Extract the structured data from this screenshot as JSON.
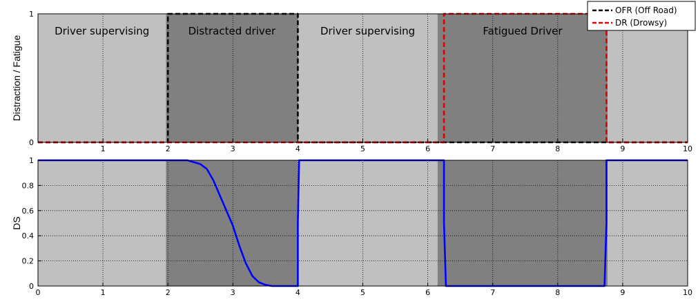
{
  "chart_data": [
    {
      "type": "line",
      "title": "",
      "xlabel": "",
      "ylabel": "Distraction / Fatigue",
      "xlim": [
        0,
        10
      ],
      "ylim": [
        0,
        1
      ],
      "x_ticks": [
        1,
        2,
        3,
        4,
        5,
        6,
        7,
        8,
        9,
        10
      ],
      "y_ticks": [
        0,
        1
      ],
      "grid": true,
      "background_regions": [
        {
          "label": "Driver supervising",
          "x_start": 0,
          "x_end": 1.97,
          "color": "#c0c0c0"
        },
        {
          "label": "Distracted driver",
          "x_start": 1.97,
          "x_end": 4.0,
          "color": "#808080"
        },
        {
          "label": "Driver supervising",
          "x_start": 4.0,
          "x_end": 6.15,
          "color": "#c0c0c0"
        },
        {
          "label": "Fatigued Driver",
          "x_start": 6.15,
          "x_end": 8.77,
          "color": "#808080"
        },
        {
          "label": "",
          "x_start": 8.77,
          "x_end": 10,
          "color": "#c0c0c0"
        }
      ],
      "legend": {
        "placement": "top-right",
        "entries": [
          "OFR (Off Road)",
          "DR (Drowsy)"
        ]
      },
      "series": [
        {
          "name": "OFR (Off Road)",
          "color": "#000000",
          "style": "dashed",
          "x": [
            0,
            2,
            2,
            4,
            4,
            6.25,
            6.25,
            8.75,
            8.75,
            10
          ],
          "y": [
            0,
            0,
            1,
            1,
            0,
            0,
            0,
            0,
            0,
            0
          ]
        },
        {
          "name": "DR (Drowsy)",
          "color": "#e00000",
          "style": "dashed",
          "x": [
            0,
            6.25,
            6.25,
            8.75,
            8.75,
            10
          ],
          "y": [
            0,
            0,
            1,
            1,
            0,
            0
          ]
        }
      ]
    },
    {
      "type": "line",
      "title": "",
      "xlabel": "",
      "ylabel": "DS",
      "xlim": [
        0,
        10
      ],
      "ylim": [
        0,
        1
      ],
      "x_ticks": [
        0,
        1,
        2,
        3,
        4,
        5,
        6,
        7,
        8,
        9,
        10
      ],
      "y_ticks": [
        0,
        0.2,
        0.4,
        0.6,
        0.8,
        1
      ],
      "grid": true,
      "background_regions": [
        {
          "x_start": 0,
          "x_end": 1.97,
          "color": "#c0c0c0"
        },
        {
          "x_start": 1.97,
          "x_end": 4.0,
          "color": "#808080"
        },
        {
          "x_start": 4.0,
          "x_end": 6.15,
          "color": "#c0c0c0"
        },
        {
          "x_start": 6.15,
          "x_end": 8.77,
          "color": "#808080"
        },
        {
          "x_start": 8.77,
          "x_end": 10,
          "color": "#c0c0c0"
        }
      ],
      "series": [
        {
          "name": "DS",
          "color": "#0000ff",
          "style": "solid",
          "x": [
            0,
            2.0,
            2.3,
            2.5,
            2.6,
            2.7,
            2.8,
            2.9,
            3.0,
            3.1,
            3.2,
            3.3,
            3.4,
            3.5,
            3.6,
            3.7,
            4.0,
            4.0,
            4.0,
            4.02,
            6.25,
            6.25,
            6.28,
            8.72,
            8.75,
            8.75,
            10
          ],
          "y": [
            1,
            1,
            1,
            0.97,
            0.93,
            0.84,
            0.72,
            0.6,
            0.48,
            0.32,
            0.18,
            0.08,
            0.03,
            0.01,
            0,
            0,
            0,
            0.5,
            0.5,
            1,
            1,
            0.5,
            0,
            0,
            0.5,
            1,
            1
          ]
        }
      ]
    }
  ]
}
